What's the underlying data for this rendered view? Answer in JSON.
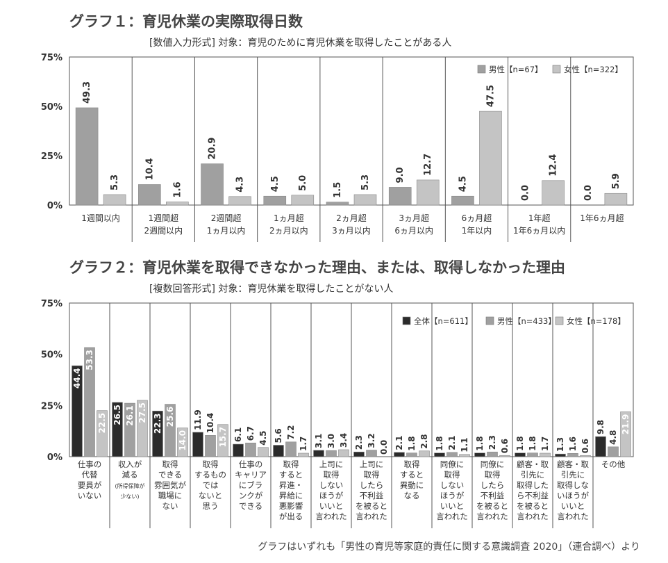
{
  "chart_data": [
    {
      "type": "bar",
      "title": "グラフ１：育児休業の実際取得日数",
      "subtitle": "[数値入力形式] 対象：育児のために育児休業を取得したことがある人",
      "categories": [
        [
          "1週間以内"
        ],
        [
          "1週間超",
          "2週間以内"
        ],
        [
          "2週間超",
          "1ヵ月以内"
        ],
        [
          "1ヵ月超",
          "2ヵ月以内"
        ],
        [
          "2ヵ月超",
          "3ヵ月以内"
        ],
        [
          "3ヵ月超",
          "6ヵ月以内"
        ],
        [
          "6ヵ月超",
          "1年以内"
        ],
        [
          "1年超",
          "1年6ヵ月以内"
        ],
        [
          "1年6ヵ月超"
        ]
      ],
      "series": [
        {
          "name": "男性【n=67】",
          "color": "#a0a0a0",
          "values": [
            49.3,
            10.4,
            20.9,
            4.5,
            1.5,
            9.0,
            4.5,
            0.0,
            0.0
          ]
        },
        {
          "name": "女性【n=322】",
          "color": "#c4c4c4",
          "values": [
            5.3,
            1.6,
            4.3,
            5.0,
            5.3,
            12.7,
            47.5,
            12.4,
            5.9
          ]
        }
      ],
      "yticks": [
        "0%",
        "25%",
        "50%",
        "75%"
      ],
      "ylim": [
        0,
        75
      ],
      "legend": "top-right",
      "grid": false
    },
    {
      "type": "bar",
      "title": "グラフ２：育児休業を取得できなかった理由、または、取得しなかった理由",
      "subtitle": "[複数回答形式] 対象：育児休業を取得したことがない人",
      "categories": [
        [
          "仕事の",
          "代替",
          "要員が",
          "いない"
        ],
        [
          "収入が",
          "減る",
          "(所得保障が",
          "少ない)"
        ],
        [
          "取得",
          "できる",
          "雰囲気が",
          "職場に",
          "ない"
        ],
        [
          "取得",
          "するもの",
          "では",
          "ないと",
          "思う"
        ],
        [
          "仕事の",
          "キャリア",
          "にブラ",
          "ンクが",
          "できる"
        ],
        [
          "取得",
          "すると",
          "昇進・",
          "昇給に",
          "悪影響",
          "が出る"
        ],
        [
          "上司に",
          "取得",
          "しない",
          "ほうが",
          "いいと",
          "言われた"
        ],
        [
          "上司に",
          "取得",
          "したら",
          "不利益",
          "を被ると",
          "言われた"
        ],
        [
          "取得",
          "すると",
          "異動に",
          "なる"
        ],
        [
          "同僚に",
          "取得",
          "しない",
          "ほうが",
          "いいと",
          "言われた"
        ],
        [
          "同僚に",
          "取得",
          "したら",
          "不利益",
          "を被ると",
          "言われた"
        ],
        [
          "顧客・取",
          "引先に",
          "取得した",
          "ら不利益",
          "を被ると",
          "言われた"
        ],
        [
          "顧客・取",
          "引先に",
          "取得しな",
          "いほうが",
          "いいと",
          "言われた"
        ],
        [
          "その他"
        ]
      ],
      "series": [
        {
          "name": "全体【n=611】",
          "color": "#2b2b2b",
          "values": [
            44.4,
            26.5,
            22.3,
            11.9,
            6.1,
            5.6,
            3.1,
            2.3,
            2.1,
            1.8,
            1.8,
            1.8,
            1.3,
            9.8
          ]
        },
        {
          "name": "男性【n=433】",
          "color": "#a0a0a0",
          "values": [
            53.3,
            26.1,
            25.6,
            10.4,
            6.7,
            7.2,
            3.0,
            3.2,
            1.8,
            2.1,
            2.3,
            1.8,
            1.6,
            4.8
          ]
        },
        {
          "name": "女性【n=178】",
          "color": "#c4c4c4",
          "values": [
            22.5,
            27.5,
            14.0,
            15.7,
            4.5,
            1.7,
            3.4,
            0.0,
            2.8,
            1.1,
            0.6,
            1.7,
            0.6,
            21.9
          ]
        }
      ],
      "yticks": [
        "0%",
        "25%",
        "50%",
        "75%"
      ],
      "ylim": [
        0,
        75
      ],
      "legend": "top-right",
      "grid": false
    }
  ],
  "footer": "グラフはいずれも「男性の育児等家庭的責任に関する意識調査 2020」（連合調べ）より"
}
